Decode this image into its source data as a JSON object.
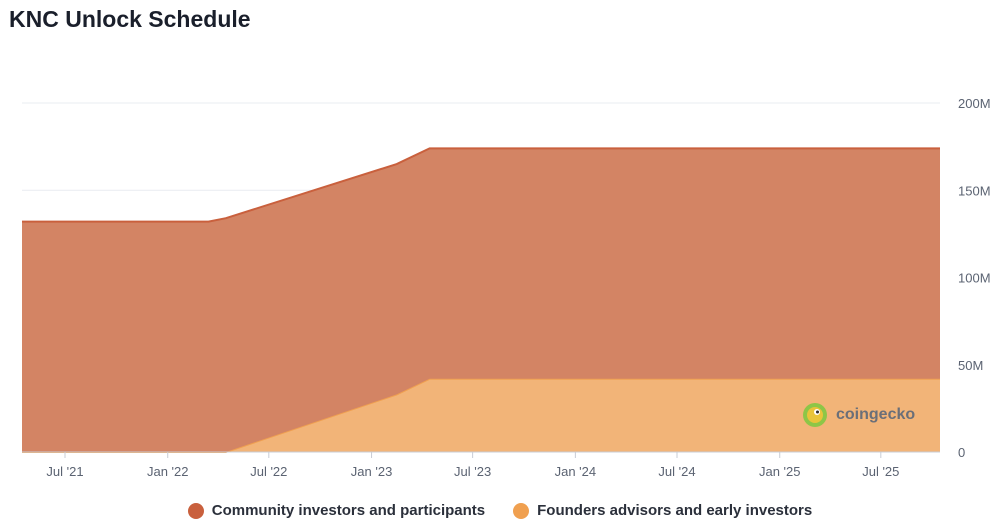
{
  "title": "KNC Unlock Schedule",
  "chart_data": {
    "type": "area",
    "stacked": true,
    "title": "KNC Unlock Schedule",
    "xlabel": "",
    "ylabel": "",
    "ylim": [
      0,
      200000000
    ],
    "yticks": [
      0,
      50000000,
      100000000,
      150000000,
      200000000
    ],
    "ytick_labels": [
      "0",
      "50M",
      "100M",
      "150M",
      "200M"
    ],
    "y_axis_position": "right",
    "xlim": [
      "2021-04-15",
      "2025-10-15"
    ],
    "xticks": [
      "2021-07-01",
      "2022-01-01",
      "2022-07-01",
      "2023-01-01",
      "2023-07-01",
      "2024-01-01",
      "2024-07-01",
      "2025-01-01",
      "2025-07-01"
    ],
    "xtick_labels": [
      "Jul '21",
      "Jan '22",
      "Jul '22",
      "Jan '23",
      "Jul '23",
      "Jan '24",
      "Jul '24",
      "Jan '25",
      "Jul '25"
    ],
    "x": [
      "2021-04-15",
      "2022-03-15",
      "2022-04-15",
      "2023-02-15",
      "2023-04-15",
      "2025-10-15"
    ],
    "series": [
      {
        "name": "Founders advisors and early investors",
        "color": "#f2b478",
        "line_color": "#f0a050",
        "values": [
          0,
          0,
          0,
          33000000,
          42000000,
          42000000
        ]
      },
      {
        "name": "Community investors and participants",
        "color": "#d38464",
        "line_color": "#c9603d",
        "values": [
          132000000,
          132000000,
          134000000,
          132000000,
          132000000,
          132000000
        ]
      }
    ],
    "legend": "bottom",
    "grid": true
  },
  "watermark": {
    "text": "coingecko"
  }
}
